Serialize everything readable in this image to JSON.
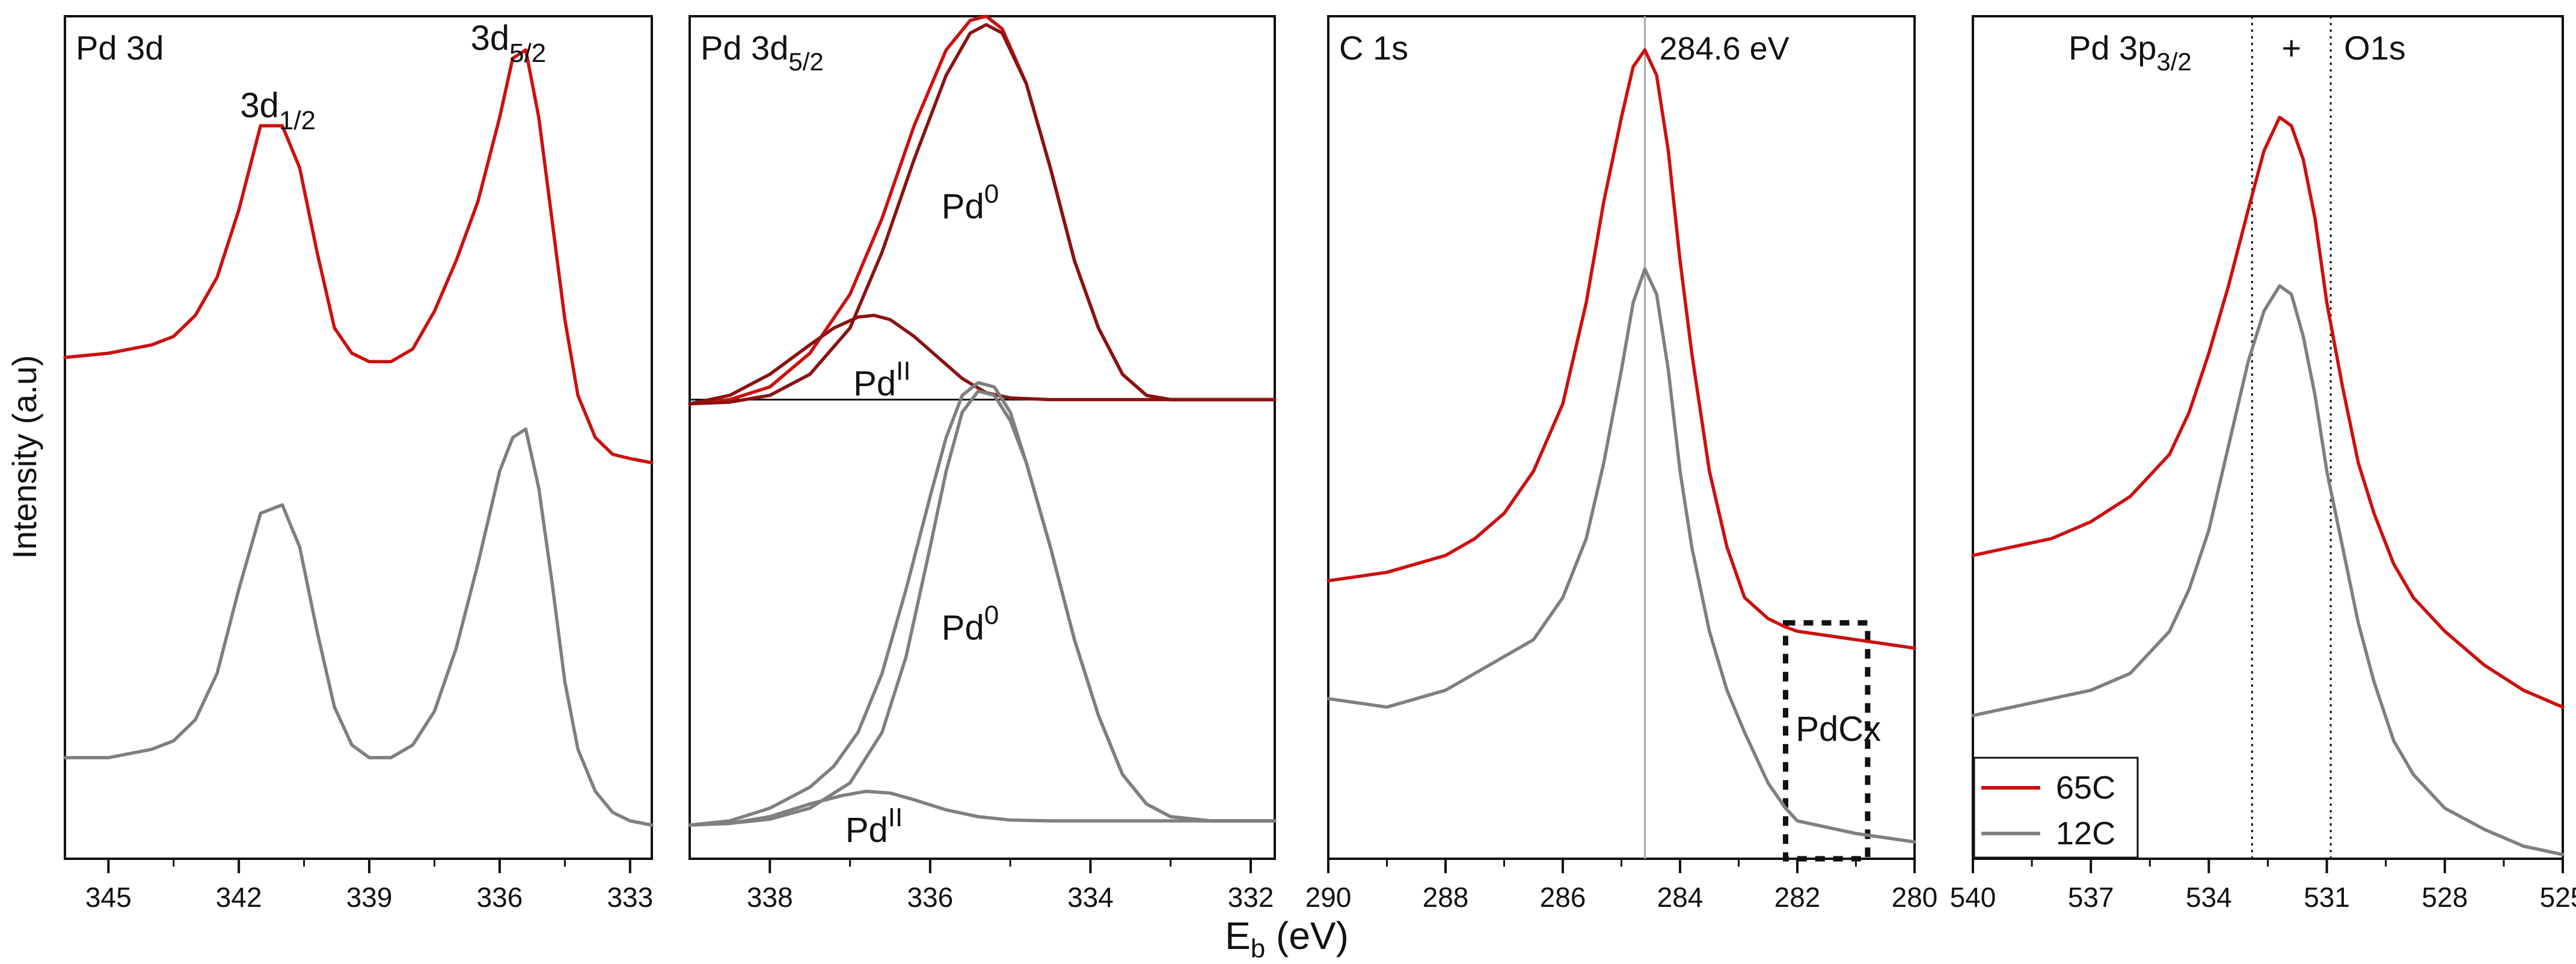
{
  "figure": {
    "ylabel": "Intensity (a.u)",
    "xlabel_main": "E",
    "xlabel_sub": "b",
    "xlabel_tail": " (eV)"
  },
  "colors": {
    "red": "#cc1010",
    "gray": "#7f7f7f",
    "darkred": "#8b1212",
    "grid": "#aaaaaa",
    "axis": "#111111"
  },
  "chart_data": [
    {
      "type": "line",
      "title": "Pd 3d",
      "xlim": [
        346,
        332.5
      ],
      "ylim": [
        0,
        1
      ],
      "xticks": [
        345,
        342,
        339,
        336,
        333
      ],
      "xlabel": "Eb (eV)",
      "ylabel": "Intensity (a.u)",
      "series": [
        {
          "name": "65C",
          "color": "red",
          "x": [
            346,
            345,
            344,
            343.5,
            343,
            342.5,
            342,
            341.5,
            341,
            340.6,
            340.2,
            339.8,
            339.4,
            339,
            338.5,
            338,
            337.5,
            337,
            336.5,
            336,
            335.7,
            335.4,
            335.1,
            334.8,
            334.5,
            334.2,
            333.8,
            333.4,
            333,
            332.5
          ],
          "y": [
            0.595,
            0.6,
            0.61,
            0.62,
            0.645,
            0.69,
            0.77,
            0.87,
            0.87,
            0.82,
            0.72,
            0.63,
            0.6,
            0.59,
            0.59,
            0.605,
            0.65,
            0.71,
            0.78,
            0.88,
            0.95,
            0.96,
            0.88,
            0.76,
            0.64,
            0.55,
            0.5,
            0.48,
            0.475,
            0.47
          ]
        },
        {
          "name": "12C",
          "color": "gray",
          "x": [
            346,
            345,
            344,
            343.5,
            343,
            342.5,
            342,
            341.5,
            341,
            340.6,
            340.2,
            339.8,
            339.4,
            339,
            338.5,
            338,
            337.5,
            337,
            336.5,
            336,
            335.7,
            335.4,
            335.1,
            334.8,
            334.5,
            334.2,
            333.8,
            333.4,
            333,
            332.5
          ],
          "y": [
            0.12,
            0.12,
            0.13,
            0.14,
            0.165,
            0.22,
            0.32,
            0.41,
            0.42,
            0.37,
            0.27,
            0.18,
            0.135,
            0.12,
            0.12,
            0.135,
            0.175,
            0.25,
            0.35,
            0.46,
            0.5,
            0.51,
            0.44,
            0.33,
            0.21,
            0.13,
            0.08,
            0.055,
            0.045,
            0.04
          ]
        }
      ],
      "annotations": [
        {
          "id": "a1",
          "main": "3d",
          "sub": "1/2",
          "x": 341.1,
          "y": 0.88,
          "kind": "sub"
        },
        {
          "id": "a2",
          "main": "3d",
          "sub": "5/2",
          "x": 335.8,
          "y": 0.96,
          "kind": "sub"
        }
      ]
    },
    {
      "type": "line",
      "title": "Pd 3d",
      "title_sub": "5/2",
      "xlim": [
        339,
        331.7
      ],
      "ylim": [
        0,
        1
      ],
      "xticks": [
        338,
        336,
        334,
        332
      ],
      "series": [
        {
          "name": "65C envelope",
          "color": "red",
          "x": [
            339,
            338.5,
            338,
            337.5,
            337,
            336.6,
            336.2,
            335.8,
            335.5,
            335.3,
            335.1,
            334.8,
            334.5,
            334.2,
            333.9,
            333.6,
            333.3,
            333,
            332.5,
            332,
            331.7
          ],
          "y": [
            0.54,
            0.545,
            0.56,
            0.6,
            0.67,
            0.76,
            0.87,
            0.96,
            0.995,
            1.0,
            0.985,
            0.92,
            0.82,
            0.71,
            0.63,
            0.575,
            0.55,
            0.545,
            0.545,
            0.545,
            0.545
          ]
        },
        {
          "name": "65C Pd0",
          "color": "darkred",
          "x": [
            339,
            338.5,
            338,
            337.5,
            337,
            336.6,
            336.2,
            335.8,
            335.5,
            335.3,
            335.1,
            334.8,
            334.5,
            334.2,
            333.9,
            333.6,
            333.3,
            333,
            332.5,
            332,
            331.7
          ],
          "y": [
            0.54,
            0.542,
            0.55,
            0.575,
            0.63,
            0.72,
            0.83,
            0.93,
            0.98,
            0.99,
            0.98,
            0.92,
            0.82,
            0.71,
            0.63,
            0.575,
            0.55,
            0.545,
            0.545,
            0.545,
            0.545
          ]
        },
        {
          "name": "65C PdII",
          "color": "darkred",
          "x": [
            339,
            338.5,
            338,
            337.5,
            337.2,
            336.9,
            336.7,
            336.5,
            336.2,
            335.9,
            335.6,
            335.3,
            335,
            334.5,
            334,
            333,
            332,
            331.7
          ],
          "y": [
            0.54,
            0.55,
            0.575,
            0.61,
            0.63,
            0.643,
            0.645,
            0.64,
            0.62,
            0.595,
            0.57,
            0.553,
            0.547,
            0.545,
            0.545,
            0.545,
            0.545,
            0.545
          ]
        },
        {
          "name": "12C envelope",
          "color": "gray",
          "x": [
            339,
            338.5,
            338,
            337.5,
            337.2,
            336.9,
            336.6,
            336.3,
            336,
            335.8,
            335.6,
            335.4,
            335.2,
            335,
            334.8,
            334.5,
            334.2,
            333.9,
            333.6,
            333.3,
            333,
            332.5,
            332,
            331.7
          ],
          "y": [
            0.04,
            0.045,
            0.06,
            0.085,
            0.11,
            0.15,
            0.22,
            0.32,
            0.43,
            0.5,
            0.55,
            0.565,
            0.56,
            0.53,
            0.47,
            0.37,
            0.26,
            0.17,
            0.1,
            0.065,
            0.05,
            0.045,
            0.045,
            0.045
          ]
        },
        {
          "name": "12C Pd0",
          "color": "gray",
          "x": [
            339,
            338.5,
            338,
            337.5,
            337,
            336.6,
            336.3,
            336,
            335.8,
            335.6,
            335.4,
            335.2,
            335,
            334.8,
            334.5,
            334.2,
            333.9,
            333.6,
            333.3,
            333,
            332.5,
            332,
            331.7
          ],
          "y": [
            0.04,
            0.042,
            0.047,
            0.06,
            0.09,
            0.15,
            0.24,
            0.37,
            0.46,
            0.53,
            0.555,
            0.55,
            0.52,
            0.47,
            0.37,
            0.26,
            0.17,
            0.1,
            0.065,
            0.05,
            0.045,
            0.045,
            0.045
          ]
        },
        {
          "name": "12C PdII",
          "color": "gray",
          "x": [
            339,
            338.5,
            338,
            337.5,
            337.1,
            336.8,
            336.5,
            336.2,
            335.8,
            335.4,
            335,
            334.5,
            334,
            333,
            332,
            331.7
          ],
          "y": [
            0.04,
            0.042,
            0.05,
            0.065,
            0.075,
            0.08,
            0.078,
            0.07,
            0.058,
            0.05,
            0.046,
            0.045,
            0.045,
            0.045,
            0.045,
            0.045
          ]
        }
      ],
      "annotations": [
        {
          "id": "b1",
          "main": "Pd",
          "sup": "0",
          "x": 335.5,
          "y": 0.76,
          "kind": "sup"
        },
        {
          "id": "b2",
          "main": "Pd",
          "sup": "II",
          "x": 336.6,
          "y": 0.55,
          "kind": "sup"
        },
        {
          "id": "b3",
          "main": "Pd",
          "sup": "0",
          "x": 335.5,
          "y": 0.26,
          "kind": "sup"
        },
        {
          "id": "b4",
          "main": "Pd",
          "sup": "II",
          "x": 336.7,
          "y": 0.02,
          "kind": "sup"
        }
      ],
      "hline_y": 0.545
    },
    {
      "type": "line",
      "title": "C 1s",
      "xlim": [
        290,
        280
      ],
      "ylim": [
        0,
        1
      ],
      "xticks": [
        290,
        288,
        286,
        284,
        282,
        280
      ],
      "vline": {
        "x": 284.6,
        "label": "284.6 eV"
      },
      "series": [
        {
          "name": "65C",
          "color": "red",
          "x": [
            290,
            289,
            288,
            287.5,
            287,
            286.5,
            286,
            285.6,
            285.3,
            285,
            284.8,
            284.6,
            284.4,
            284.2,
            284,
            283.8,
            283.5,
            283.2,
            282.9,
            282.5,
            282.2,
            282,
            281,
            280
          ],
          "y": [
            0.33,
            0.34,
            0.36,
            0.38,
            0.41,
            0.46,
            0.54,
            0.66,
            0.78,
            0.88,
            0.94,
            0.96,
            0.93,
            0.84,
            0.71,
            0.6,
            0.46,
            0.37,
            0.31,
            0.285,
            0.275,
            0.27,
            0.26,
            0.25
          ]
        },
        {
          "name": "12C",
          "color": "gray",
          "x": [
            290,
            289,
            288,
            287.5,
            287,
            286.5,
            286,
            285.6,
            285.3,
            285,
            284.8,
            284.6,
            284.4,
            284.2,
            284,
            283.8,
            283.5,
            283.2,
            282.9,
            282.5,
            282.2,
            282,
            281,
            280
          ],
          "y": [
            0.19,
            0.18,
            0.2,
            0.22,
            0.24,
            0.26,
            0.31,
            0.38,
            0.47,
            0.58,
            0.66,
            0.7,
            0.67,
            0.58,
            0.46,
            0.37,
            0.27,
            0.2,
            0.15,
            0.09,
            0.06,
            0.045,
            0.03,
            0.02
          ]
        }
      ],
      "annotations": [
        {
          "id": "c1",
          "main": "PdCx",
          "x": 281.3,
          "y": 0.14,
          "kind": "plain"
        }
      ],
      "box": {
        "x": [
          282.2,
          280.8
        ],
        "y": [
          0.0,
          0.28
        ]
      }
    },
    {
      "type": "line",
      "title": "Pd 3p",
      "title_sub": "3/2",
      "xlim": [
        540,
        525
      ],
      "ylim": [
        0,
        1
      ],
      "xticks": [
        540,
        537,
        534,
        531,
        528,
        525
      ],
      "vlines": [
        532.9,
        530.9
      ],
      "plus_label": "+",
      "o1s_label": "O1s",
      "legend": [
        {
          "name": "65C",
          "color": "red"
        },
        {
          "name": "12C",
          "color": "gray"
        }
      ],
      "series": [
        {
          "name": "65C",
          "color": "red",
          "x": [
            540,
            539,
            538,
            537,
            536,
            535,
            534.5,
            534,
            533.5,
            533,
            532.6,
            532.2,
            531.9,
            531.6,
            531.3,
            531,
            530.6,
            530.2,
            529.8,
            529.3,
            528.8,
            528,
            527,
            526,
            525
          ],
          "y": [
            0.36,
            0.37,
            0.38,
            0.4,
            0.43,
            0.48,
            0.53,
            0.6,
            0.68,
            0.77,
            0.84,
            0.88,
            0.87,
            0.83,
            0.76,
            0.66,
            0.56,
            0.47,
            0.41,
            0.35,
            0.31,
            0.27,
            0.23,
            0.2,
            0.18
          ]
        },
        {
          "name": "12C",
          "color": "gray",
          "x": [
            540,
            539,
            538,
            537,
            536,
            535,
            534.5,
            534,
            533.5,
            533,
            532.6,
            532.2,
            531.9,
            531.6,
            531.3,
            531,
            530.6,
            530.2,
            529.8,
            529.3,
            528.8,
            528,
            527,
            526,
            525
          ],
          "y": [
            0.17,
            0.18,
            0.19,
            0.2,
            0.22,
            0.27,
            0.32,
            0.39,
            0.49,
            0.59,
            0.65,
            0.68,
            0.67,
            0.62,
            0.55,
            0.46,
            0.37,
            0.28,
            0.21,
            0.14,
            0.1,
            0.06,
            0.035,
            0.015,
            0.005
          ]
        }
      ]
    }
  ]
}
